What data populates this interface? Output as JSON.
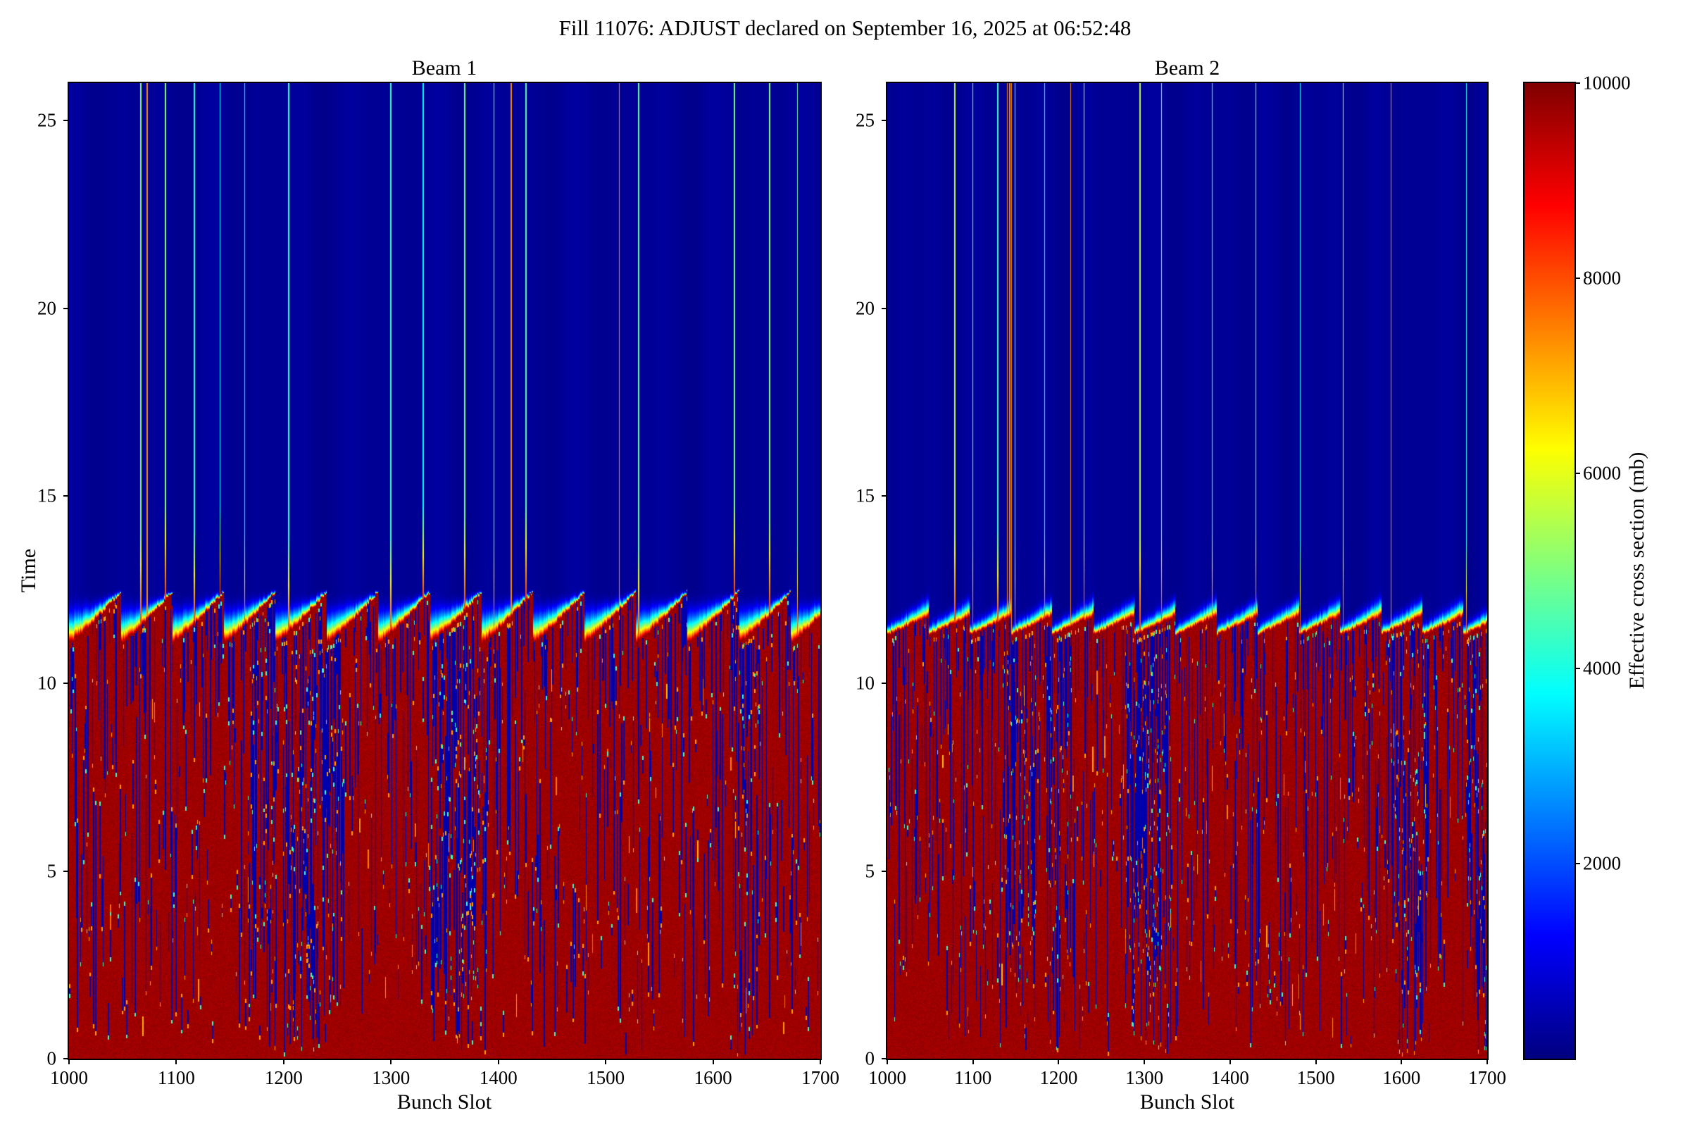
{
  "figure": {
    "title": "Fill 11076: ADJUST declared on September 16, 2025 at 06:52:48"
  },
  "chart_data": {
    "type": "heatmap",
    "colormap": "jet",
    "value_range": [
      0,
      10000
    ],
    "pattern_description": "Two bunch-by-bunch effective cross section heatmaps. Above time ~12.5 the map is dark navy (~100-300 mb) with faint vertical banding and thin isolated cyan/green bunch lines whose tips turn orange/red near the transition. Between time ~11.1 and ~12.6 a flame-like transition band sweeps through red-orange-yellow-green-cyan following a sawtooth that tracks ~48-slot bunch trains. Below time ~11 the map is a dark-red plateau (~9700-10000 mb) peppered with thin dark-blue dropout streaks whose ends carry yellow/cyan specks, plus occasional bright orange dashes.",
    "panels": [
      {
        "title": "Beam 1",
        "xlabel": "Bunch Slot",
        "ylabel": "Time",
        "x_range": [
          1000,
          1700
        ],
        "y_range": [
          0,
          26
        ],
        "x_ticks": [
          1000,
          1100,
          1200,
          1300,
          1400,
          1500,
          1600,
          1700
        ],
        "y_ticks": [
          0,
          5,
          10,
          15,
          20,
          25
        ],
        "seed": 11076,
        "pattern": {
          "n_slots": 700,
          "train_period_slots": 48,
          "top_value_range": [
            110,
            300
          ],
          "plateau_value": 9700,
          "transition_base_time": 11.1,
          "transition_ramp": 1.35,
          "transition_pow": 1.15,
          "transition_noise": 0.1,
          "glow_top_time": 12.55,
          "glow_ramp": 0,
          "sharp_base": 2.6,
          "sharp_ramp": 1.6,
          "bright_line_prob": 0.045,
          "bright_line_value": [
            3600,
            5600
          ],
          "bright_line_tip_value": 8300,
          "orange_line_prob": 0.006,
          "streak_density": 0.75,
          "streak_value": 430,
          "hanging_streak_prob": 0.2,
          "orange_dash_prob": 0.06,
          "speck_values": [
            4300,
            7200
          ],
          "streak_clusters": 6
        }
      },
      {
        "title": "Beam 2",
        "xlabel": "Bunch Slot",
        "x_range": [
          1000,
          1700
        ],
        "y_range": [
          0,
          26
        ],
        "x_ticks": [
          1000,
          1100,
          1200,
          1300,
          1400,
          1500,
          1600,
          1700
        ],
        "y_ticks": [
          0,
          5,
          10,
          15,
          20,
          25
        ],
        "seed": 20252,
        "pattern": {
          "n_slots": 700,
          "train_period_slots": 48,
          "top_value_range": [
            110,
            300
          ],
          "plateau_value": 9700,
          "transition_base_time": 11.3,
          "transition_ramp": 0.5,
          "transition_pow": 1.0,
          "transition_noise": 0.08,
          "glow_top_time": 11.95,
          "glow_ramp": 0.6,
          "sharp_base": 4.5,
          "sharp_ramp": -2.3,
          "bright_line_prob": 0.05,
          "bright_line_value": [
            3600,
            5600
          ],
          "bright_line_tip_value": 8300,
          "orange_line_prob": 0.006,
          "streak_density": 0.7,
          "streak_value": 430,
          "hanging_streak_prob": 0.2,
          "orange_dash_prob": 0.06,
          "speck_values": [
            4300,
            7200
          ],
          "streak_clusters": 6
        }
      }
    ],
    "colorbar": {
      "label": "Effective cross section (mb)",
      "range": [
        0,
        10000
      ],
      "ticks": [
        2000,
        4000,
        6000,
        8000,
        10000
      ]
    }
  }
}
